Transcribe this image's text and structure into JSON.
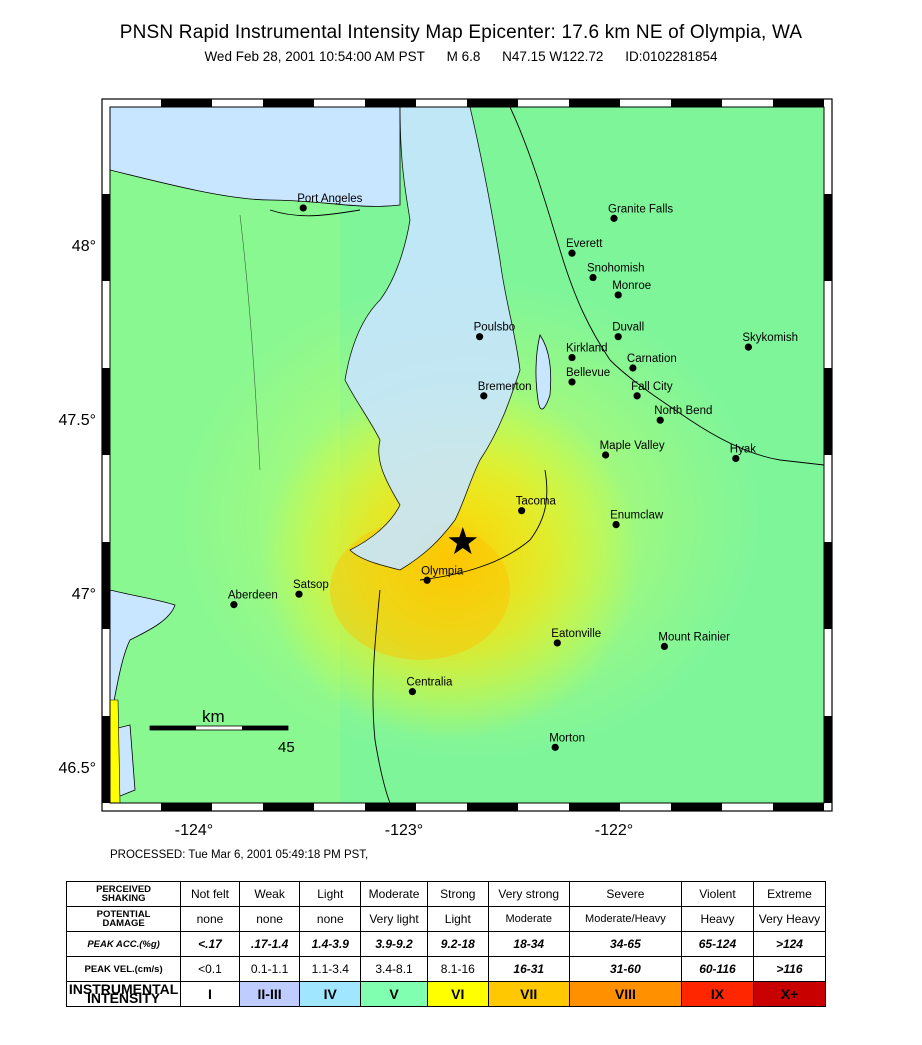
{
  "title": "PNSN Rapid Instrumental Intensity Map Epicenter: 17.6 km NE of Olympia, WA",
  "subtitle": {
    "datetime": "Wed Feb 28, 2001 10:54:00 AM PST",
    "magnitude": "M 6.8",
    "location": "N47.15 W122.72",
    "id": "ID:0102281854"
  },
  "processed": "PROCESSED: Tue Mar 6, 2001 05:49:18 PM PST,",
  "map": {
    "lon_range": [
      -124.4,
      -121.0
    ],
    "lat_range": [
      46.4,
      48.4
    ],
    "lon_ticks": [
      {
        "value": -124,
        "label": "-124°"
      },
      {
        "value": -123,
        "label": "-123°"
      },
      {
        "value": -122,
        "label": "-122°"
      }
    ],
    "lat_ticks": [
      {
        "value": 48,
        "label": "48°"
      },
      {
        "value": 47.5,
        "label": "47.5°"
      },
      {
        "value": 47,
        "label": "47°"
      },
      {
        "value": 46.5,
        "label": "46.5°"
      }
    ],
    "epicenter": {
      "lon": -122.72,
      "lat": 47.15
    },
    "scale_bar": {
      "label": "km",
      "value": "45"
    },
    "cities": [
      {
        "name": "Port Angeles",
        "lon": -123.48,
        "lat": 48.11
      },
      {
        "name": "Granite Falls",
        "lon": -122.0,
        "lat": 48.08
      },
      {
        "name": "Everett",
        "lon": -122.2,
        "lat": 47.98
      },
      {
        "name": "Snohomish",
        "lon": -122.1,
        "lat": 47.91
      },
      {
        "name": "Monroe",
        "lon": -121.98,
        "lat": 47.86
      },
      {
        "name": "Duvall",
        "lon": -121.98,
        "lat": 47.74
      },
      {
        "name": "Skykomish",
        "lon": -121.36,
        "lat": 47.71
      },
      {
        "name": "Poulsbo",
        "lon": -122.64,
        "lat": 47.74
      },
      {
        "name": "Kirkland",
        "lon": -122.2,
        "lat": 47.68
      },
      {
        "name": "Carnation",
        "lon": -121.91,
        "lat": 47.65
      },
      {
        "name": "Bellevue",
        "lon": -122.2,
        "lat": 47.61
      },
      {
        "name": "Bremerton",
        "lon": -122.62,
        "lat": 47.57
      },
      {
        "name": "Fall City",
        "lon": -121.89,
        "lat": 47.57
      },
      {
        "name": "North Bend",
        "lon": -121.78,
        "lat": 47.5
      },
      {
        "name": "Maple Valley",
        "lon": -122.04,
        "lat": 47.4
      },
      {
        "name": "Hyak",
        "lon": -121.42,
        "lat": 47.39
      },
      {
        "name": "Tacoma",
        "lon": -122.44,
        "lat": 47.24
      },
      {
        "name": "Enumclaw",
        "lon": -121.99,
        "lat": 47.2
      },
      {
        "name": "Olympia",
        "lon": -122.89,
        "lat": 47.04
      },
      {
        "name": "Satsop",
        "lon": -123.5,
        "lat": 47.0
      },
      {
        "name": "Aberdeen",
        "lon": -123.81,
        "lat": 46.97
      },
      {
        "name": "Eatonville",
        "lon": -122.27,
        "lat": 46.86
      },
      {
        "name": "Mount Rainier",
        "lon": -121.76,
        "lat": 46.85
      },
      {
        "name": "Centralia",
        "lon": -122.96,
        "lat": 46.72
      },
      {
        "name": "Morton",
        "lon": -122.28,
        "lat": 46.56
      }
    ]
  },
  "legend": {
    "rows": [
      {
        "label": [
          "PERCEIVED",
          "SHAKING"
        ],
        "values": [
          "Not felt",
          "Weak",
          "Light",
          "Moderate",
          "Strong",
          "Very strong",
          "Severe",
          "Violent",
          "Extreme"
        ]
      },
      {
        "label": [
          "POTENTIAL",
          "DAMAGE"
        ],
        "values": [
          "none",
          "none",
          "none",
          "Very light",
          "Light",
          "Moderate",
          "Moderate/Heavy",
          "Heavy",
          "Very Heavy"
        ]
      },
      {
        "label": [
          "PEAK ACC.(%g)"
        ],
        "values": [
          "<.17",
          ".17-1.4",
          "1.4-3.9",
          "3.9-9.2",
          "9.2-18",
          "18-34",
          "34-65",
          "65-124",
          ">124"
        ]
      },
      {
        "label": [
          "PEAK VEL.(cm/s)"
        ],
        "values": [
          "<0.1",
          "0.1-1.1",
          "1.1-3.4",
          "3.4-8.1",
          "8.1-16",
          "16-31",
          "31-60",
          "60-116",
          ">116"
        ]
      },
      {
        "label": [
          "INSTRUMENTAL",
          "INTENSITY"
        ],
        "values": [
          "I",
          "II-III",
          "IV",
          "V",
          "VI",
          "VII",
          "VIII",
          "IX",
          "X+"
        ]
      }
    ],
    "intensity_colors": [
      "#ffffff",
      "#bfccff",
      "#a0e6ff",
      "#80ffb0",
      "#ffff00",
      "#ffc800",
      "#ff9100",
      "#ff2600",
      "#c80000"
    ]
  }
}
